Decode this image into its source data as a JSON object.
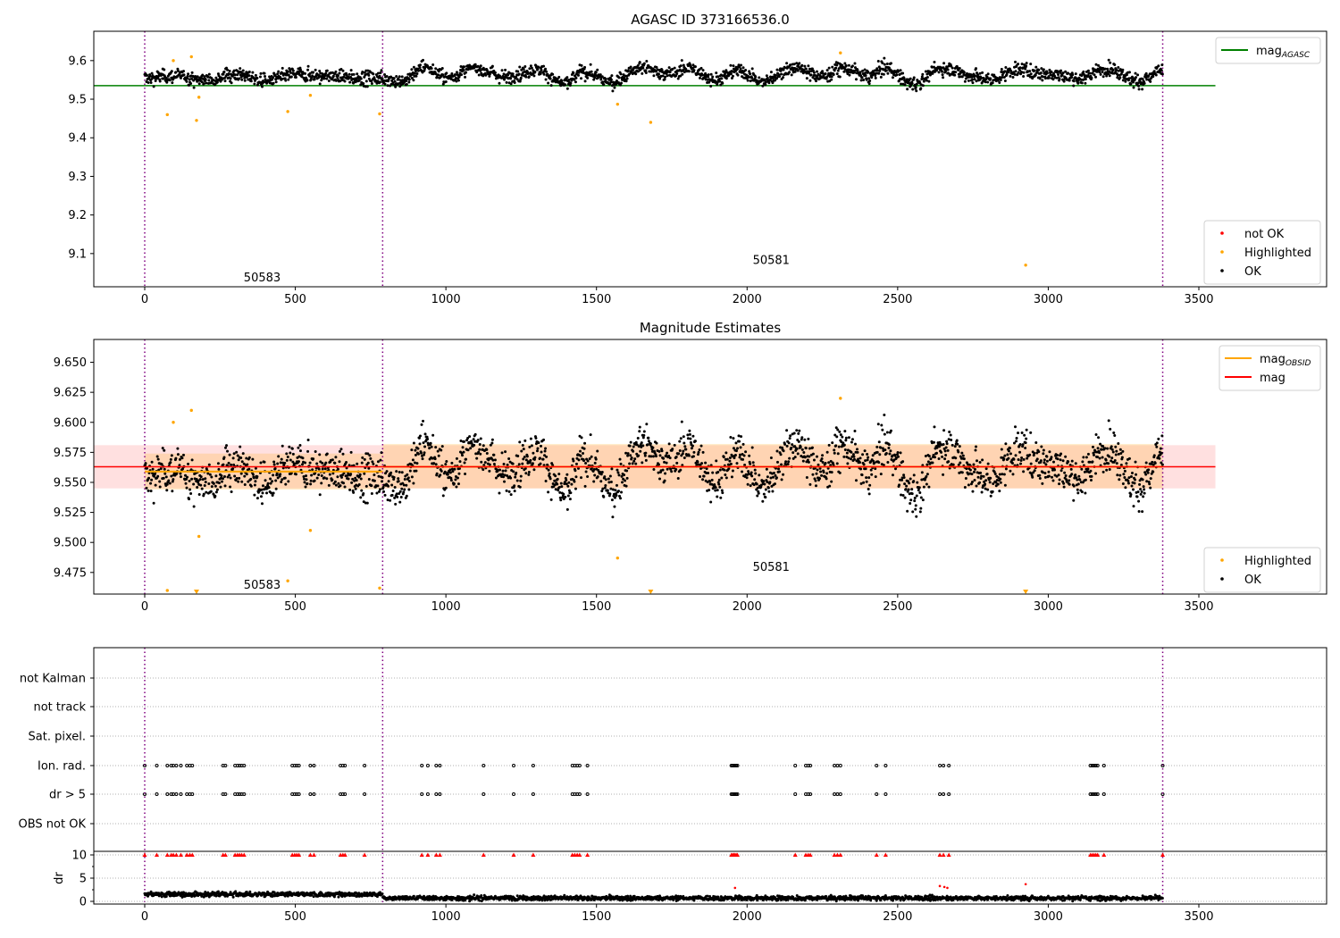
{
  "chart_data": [
    {
      "type": "scatter",
      "title": "AGASC ID 373166536.0",
      "xlim": [
        -170,
        3925
      ],
      "ylim": [
        9.014,
        9.676
      ],
      "xticks": [
        0,
        500,
        1000,
        1500,
        2000,
        2500,
        3000,
        3500
      ],
      "yticks": [
        9.1,
        9.2,
        9.3,
        9.4,
        9.5,
        9.6
      ],
      "ytick_labels": [
        "9.1",
        "9.2",
        "9.3",
        "9.4",
        "9.5",
        "9.6"
      ],
      "lines": [
        {
          "name": "mag_AGASC",
          "label_main": "mag",
          "label_sub": "AGASC",
          "y": 9.535,
          "x": [
            -170,
            3555
          ],
          "color": "#008000"
        }
      ],
      "legend_lines_label": [
        "mag"
      ],
      "legend_scatter": [
        {
          "label": "not OK",
          "color": "#ff0000"
        },
        {
          "label": "Highlighted",
          "color": "#ffa500"
        },
        {
          "label": "OK",
          "color": "#000000"
        }
      ],
      "obsid_labels": [
        {
          "text": "50583",
          "x": 390,
          "y": 9.04
        },
        {
          "text": "50581",
          "x": 2080,
          "y": 9.085
        }
      ]
    },
    {
      "type": "scatter",
      "title": "Magnitude Estimates",
      "xlim": [
        -170,
        3925
      ],
      "ylim": [
        9.457,
        9.669
      ],
      "xticks": [
        0,
        500,
        1000,
        1500,
        2000,
        2500,
        3000,
        3500
      ],
      "yticks": [
        9.475,
        9.5,
        9.525,
        9.55,
        9.575,
        9.6,
        9.625,
        9.65
      ],
      "ytick_labels": [
        "9.475",
        "9.500",
        "9.525",
        "9.550",
        "9.575",
        "9.600",
        "9.625",
        "9.650"
      ],
      "mag": {
        "label": "mag",
        "y": 9.563,
        "band": [
          9.545,
          9.581
        ],
        "x": [
          -170,
          3555
        ],
        "color": "#ff0000"
      },
      "mag_obsid": {
        "label_main": "mag",
        "label_sub": "OBSID",
        "color": "#ffa500",
        "segments": [
          {
            "x": [
              0,
              790
            ],
            "y": 9.559,
            "band": [
              9.544,
              9.574
            ]
          },
          {
            "x": [
              790,
              3380
            ],
            "y": 9.563,
            "band": [
              9.545,
              9.582
            ]
          }
        ]
      },
      "legend_scatter": [
        {
          "label": "Highlighted",
          "color": "#ffa500"
        },
        {
          "label": "OK",
          "color": "#000000"
        }
      ],
      "obsid_labels": [
        {
          "text": "50583",
          "x": 390,
          "y": 9.465
        },
        {
          "text": "50581",
          "x": 2080,
          "y": 9.48
        }
      ]
    },
    {
      "type": "scatter",
      "flag_rows": [
        "not Kalman",
        "not track",
        "Sat. pixel.",
        "Ion. rad.",
        "dr > 5",
        "OBS not OK"
      ],
      "flag_events": {
        "Ion. rad.": "events",
        "dr > 5": "events"
      },
      "dr_ylabel": "dr",
      "dr_ylim": [
        -0.58,
        10.77
      ],
      "dr_yticks": [
        0,
        5,
        10
      ],
      "xticks": [
        0,
        500,
        1000,
        1500,
        2000,
        2500,
        3000,
        3500
      ],
      "dr_outliers": [
        [
          1960,
          2.9
        ],
        [
          2640,
          3.3
        ],
        [
          2655,
          3.1
        ],
        [
          2665,
          2.9
        ],
        [
          2925,
          3.7
        ]
      ]
    }
  ],
  "obsid_boundaries": [
    0,
    790,
    3380
  ],
  "events": [
    0,
    40,
    75,
    88,
    95,
    105,
    120,
    140,
    150,
    158,
    260,
    268,
    300,
    308,
    315,
    322,
    330,
    490,
    498,
    505,
    512,
    550,
    562,
    650,
    658,
    665,
    730,
    920,
    940,
    968,
    980,
    1125,
    1225,
    1290,
    1420,
    1428,
    1436,
    1444,
    1470,
    1948,
    1952,
    1956,
    1960,
    1964,
    1968,
    2160,
    2195,
    2203,
    2210,
    2290,
    2300,
    2310,
    2430,
    2460,
    2640,
    2652,
    2670,
    3140,
    3146,
    3152,
    3158,
    3164,
    3185,
    3380
  ],
  "highlighted": [
    [
      75,
      9.46
    ],
    [
      95,
      9.6
    ],
    [
      155,
      9.61
    ],
    [
      172,
      9.445
    ],
    [
      180,
      9.505
    ],
    [
      475,
      9.468
    ],
    [
      550,
      9.51
    ],
    [
      780,
      9.462
    ],
    [
      1570,
      9.487
    ],
    [
      1680,
      9.44
    ],
    [
      2310,
      9.62
    ],
    [
      2925,
      9.07
    ]
  ],
  "ok_trend": {
    "x": [
      0,
      100,
      200,
      300,
      400,
      500,
      600,
      700,
      790,
      850,
      930,
      1000,
      1100,
      1200,
      1300,
      1400,
      1450,
      1550,
      1650,
      1750,
      1800,
      1900,
      1970,
      2050,
      2150,
      2250,
      2320,
      2400,
      2460,
      2550,
      2650,
      2750,
      2800,
      2900,
      3000,
      3100,
      3200,
      3300,
      3380
    ],
    "mag": [
      9.555,
      9.56,
      9.55,
      9.565,
      9.548,
      9.565,
      9.56,
      9.555,
      9.555,
      9.545,
      9.585,
      9.555,
      9.58,
      9.558,
      9.575,
      9.54,
      9.57,
      9.545,
      9.58,
      9.565,
      9.58,
      9.55,
      9.575,
      9.545,
      9.58,
      9.56,
      9.58,
      9.56,
      9.58,
      9.54,
      9.58,
      9.56,
      9.55,
      9.575,
      9.565,
      9.555,
      9.58,
      9.545,
      9.575
    ],
    "noise": 0.009,
    "dr_first": 1.5,
    "dr_second": 0.7
  }
}
